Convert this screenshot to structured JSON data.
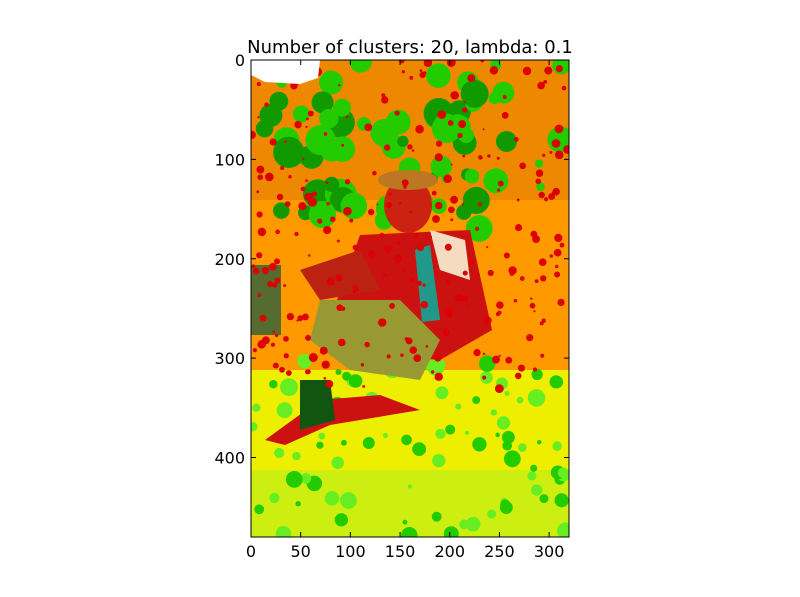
{
  "chart_data": {
    "type": "heatmap",
    "title": "Number of clusters: 20, lambda: 0.1",
    "xlabel": "",
    "ylabel": "",
    "xlim": [
      0,
      320
    ],
    "ylim": [
      480,
      0
    ],
    "x_ticks": [
      0,
      50,
      100,
      150,
      200,
      250,
      300
    ],
    "y_ticks": [
      0,
      100,
      200,
      300,
      400
    ],
    "grid": false,
    "legend": "none",
    "image_description_colors": {
      "red": "#dd0000",
      "orange": "#ff9900",
      "green": "#22cc00",
      "light_green": "#66ee22",
      "yellow": "#eeee00",
      "olive": "#999933",
      "teal": "#229988",
      "gray": "#888866",
      "dark_green": "#115511",
      "beige": "#f5dcc0",
      "white": "#ffffff"
    }
  }
}
